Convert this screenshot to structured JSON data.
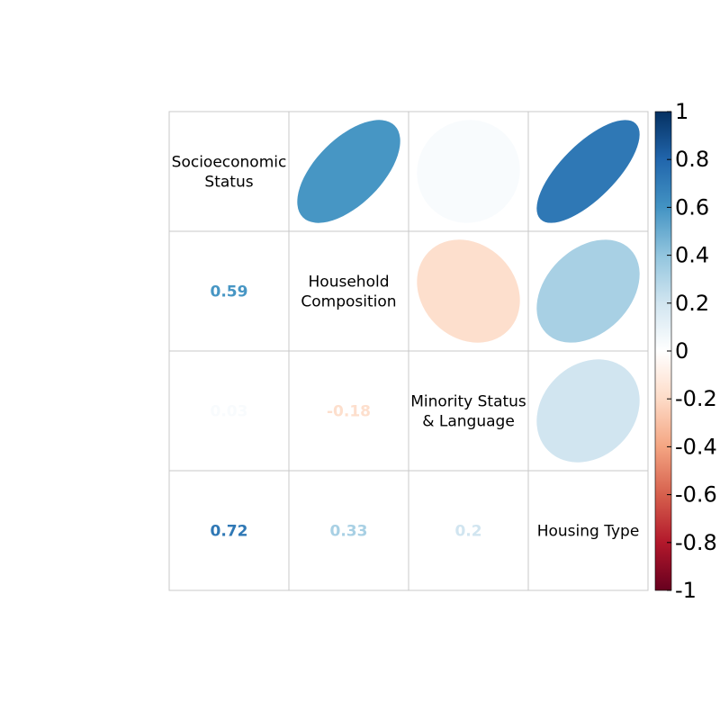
{
  "chart_data": {
    "type": "heatmap",
    "variables": [
      [
        "Socioeconomic",
        "Status"
      ],
      [
        "Household",
        "Composition"
      ],
      [
        "Minority Status",
        "& Language"
      ],
      [
        "Housing Type"
      ]
    ],
    "matrix": [
      [
        1,
        0.59,
        0.03,
        0.72
      ],
      [
        0.59,
        1,
        -0.18,
        0.33
      ],
      [
        0.03,
        -0.18,
        1,
        0.2
      ],
      [
        0.72,
        0.33,
        0.2,
        1
      ]
    ],
    "coef_labels": {
      "r1c0": "0.59",
      "r2c0": "0.03",
      "r2c1": "-0.18",
      "r3c0": "0.72",
      "r3c1": "0.33",
      "r3c2": "0.2"
    },
    "upper_glyph": "ellipse",
    "lower_glyph": "number",
    "diagonal": "variable-name",
    "colorbar": {
      "range": [
        -1,
        1
      ],
      "ticks": [
        "1",
        "0.8",
        "0.6",
        "0.4",
        "0.2",
        "0",
        "-0.2",
        "-0.4",
        "-0.6",
        "-0.8",
        "-1"
      ],
      "tick_values": [
        1,
        0.8,
        0.6,
        0.4,
        0.2,
        0,
        -0.2,
        -0.4,
        -0.6,
        -0.8,
        -1
      ],
      "placement": "right"
    },
    "colors": {
      "neg_end": "#67001f",
      "neg_mid": "#d6604d",
      "zero": "#ffffff",
      "pos_mid": "#4393c3",
      "pos_end": "#053061",
      "grid": "#c8c8c8"
    }
  }
}
